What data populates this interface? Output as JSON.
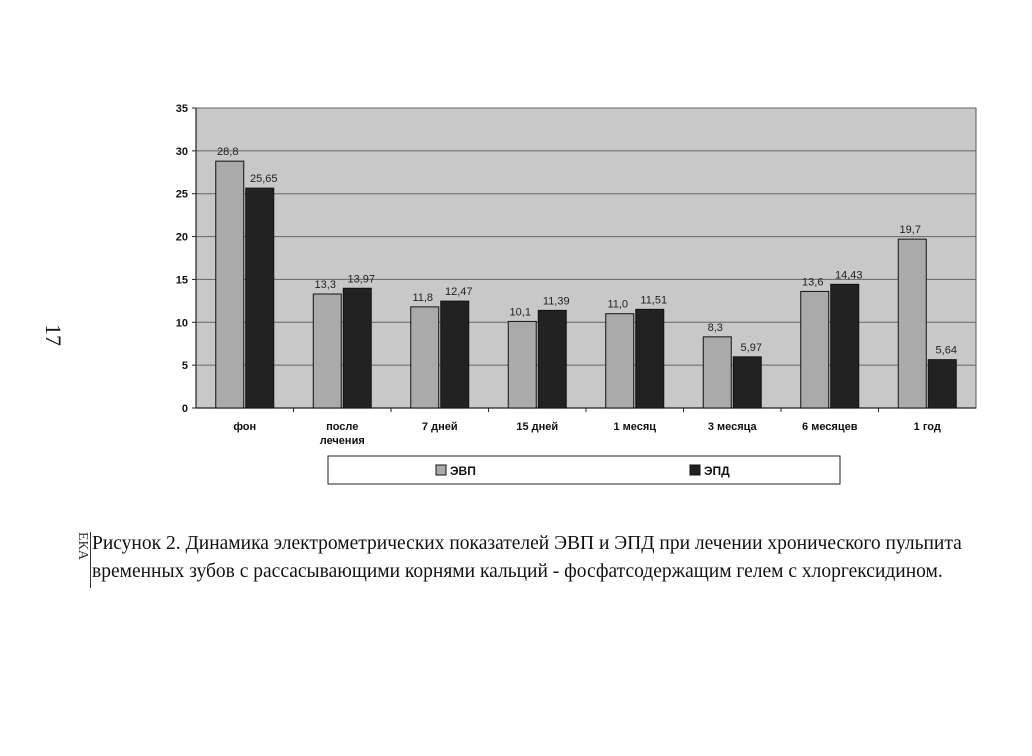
{
  "page_number": "17",
  "caption": {
    "line1": "Рисунок 2. Динамика электрометрических показателей ЭВП и ЭПД при лечении хронического пульпита",
    "line2": "временных зубов с рассасывающими корнями кальций - фосфатсодержащим гелем с хлоргексидином."
  },
  "edge_text": "ЕКА",
  "colors": {
    "plot_bg": "#c8c8c8",
    "series_evp": "#aaaaaa",
    "series_epd": "#222222",
    "grid": "#666666"
  },
  "chart_data": {
    "type": "bar",
    "title": "",
    "xlabel": "",
    "ylabel": "",
    "ylim": [
      0,
      35
    ],
    "yticks": [
      0,
      5,
      10,
      15,
      20,
      25,
      30,
      35
    ],
    "grid": true,
    "legend_position": "bottom",
    "categories": [
      [
        "фон"
      ],
      [
        "после",
        "лечения"
      ],
      [
        "7 дней"
      ],
      [
        "15 дней"
      ],
      [
        "1 месяц"
      ],
      [
        "3 месяца"
      ],
      [
        "6 месяцев"
      ],
      [
        "1 год"
      ]
    ],
    "series": [
      {
        "name": "ЭВП",
        "values": [
          28.8,
          13.3,
          11.8,
          10.1,
          11.0,
          8.3,
          13.6,
          19.7
        ],
        "labels": [
          "28,8",
          "13,3",
          "11,8",
          "10,1",
          "11,0",
          "8,3",
          "13,6",
          "19,7"
        ]
      },
      {
        "name": "ЭПД",
        "values": [
          25.65,
          13.97,
          12.47,
          11.39,
          11.51,
          5.97,
          14.43,
          5.64
        ],
        "labels": [
          "25,65",
          "13,97",
          "12,47",
          "11,39",
          "11,51",
          "5,97",
          "14,43",
          "5,64"
        ]
      }
    ]
  }
}
